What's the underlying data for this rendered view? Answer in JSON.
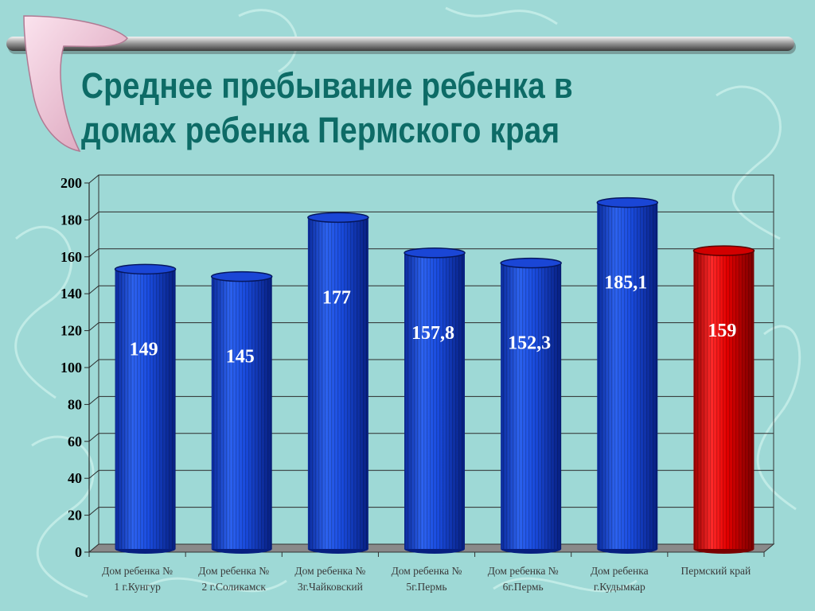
{
  "slide": {
    "title_lines": [
      "Среднее пребывание ребенка в",
      "домах ребенка Пермского края"
    ]
  },
  "colors": {
    "background": "#9ed9d6",
    "title": "#0d6b66",
    "bar_blue": "#1244d8",
    "bar_red": "#e00000"
  },
  "chart_data": {
    "type": "bar",
    "title": "",
    "xlabel": "",
    "ylabel": "",
    "ylim": [
      0,
      200
    ],
    "yticks": [
      0,
      20,
      40,
      60,
      80,
      100,
      120,
      140,
      160,
      180,
      200
    ],
    "grid": true,
    "legend": "none",
    "style": "3d-cylinder",
    "categories": [
      [
        "Дом ребенка №",
        "1 г.Кунгур"
      ],
      [
        "Дом ребенка №",
        "2 г.Соликамск"
      ],
      [
        "Дом ребенка №",
        "3г.Чайковский"
      ],
      [
        "Дом ребенка №",
        "5г.Пермь"
      ],
      [
        "Дом ребенка №",
        "6г.Пермь"
      ],
      [
        "Дом ребенка",
        "г.Кудымкар"
      ],
      [
        "Пермский край"
      ]
    ],
    "values": [
      149,
      145,
      177,
      157.8,
      152.3,
      185.1,
      159
    ],
    "value_labels": [
      "149",
      "145",
      "177",
      "157,8",
      "152,3",
      "185,1",
      "159"
    ],
    "bar_colors": [
      "blue",
      "blue",
      "blue",
      "blue",
      "blue",
      "blue",
      "red"
    ]
  }
}
